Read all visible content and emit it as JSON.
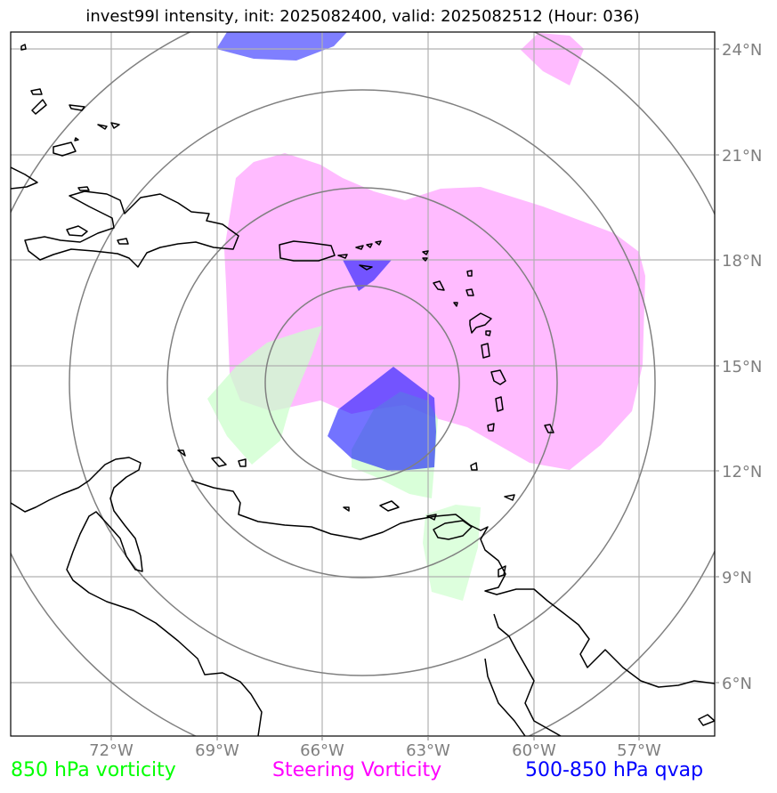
{
  "title": "invest99l intensity, init: 2025082400, valid: 2025082512 (Hour: 036)",
  "lon_ticks": [
    "72°W",
    "69°W",
    "66°W",
    "63°W",
    "60°W",
    "57°W"
  ],
  "lat_ticks": [
    "24°N",
    "21°N",
    "18°N",
    "15°N",
    "12°N",
    "9°N",
    "6°N"
  ],
  "legend": {
    "vort850": "850 hPa vorticity",
    "steering": "Steering Vorticity",
    "qvap": "500-850 hPa qvap"
  },
  "colors": {
    "vort850": "#00ff00",
    "steering": "#ff00ff",
    "qvap": "#0000ff",
    "range_rings": "#808080",
    "gridlines": "#b0b0b0",
    "coastline": "#000000"
  }
}
